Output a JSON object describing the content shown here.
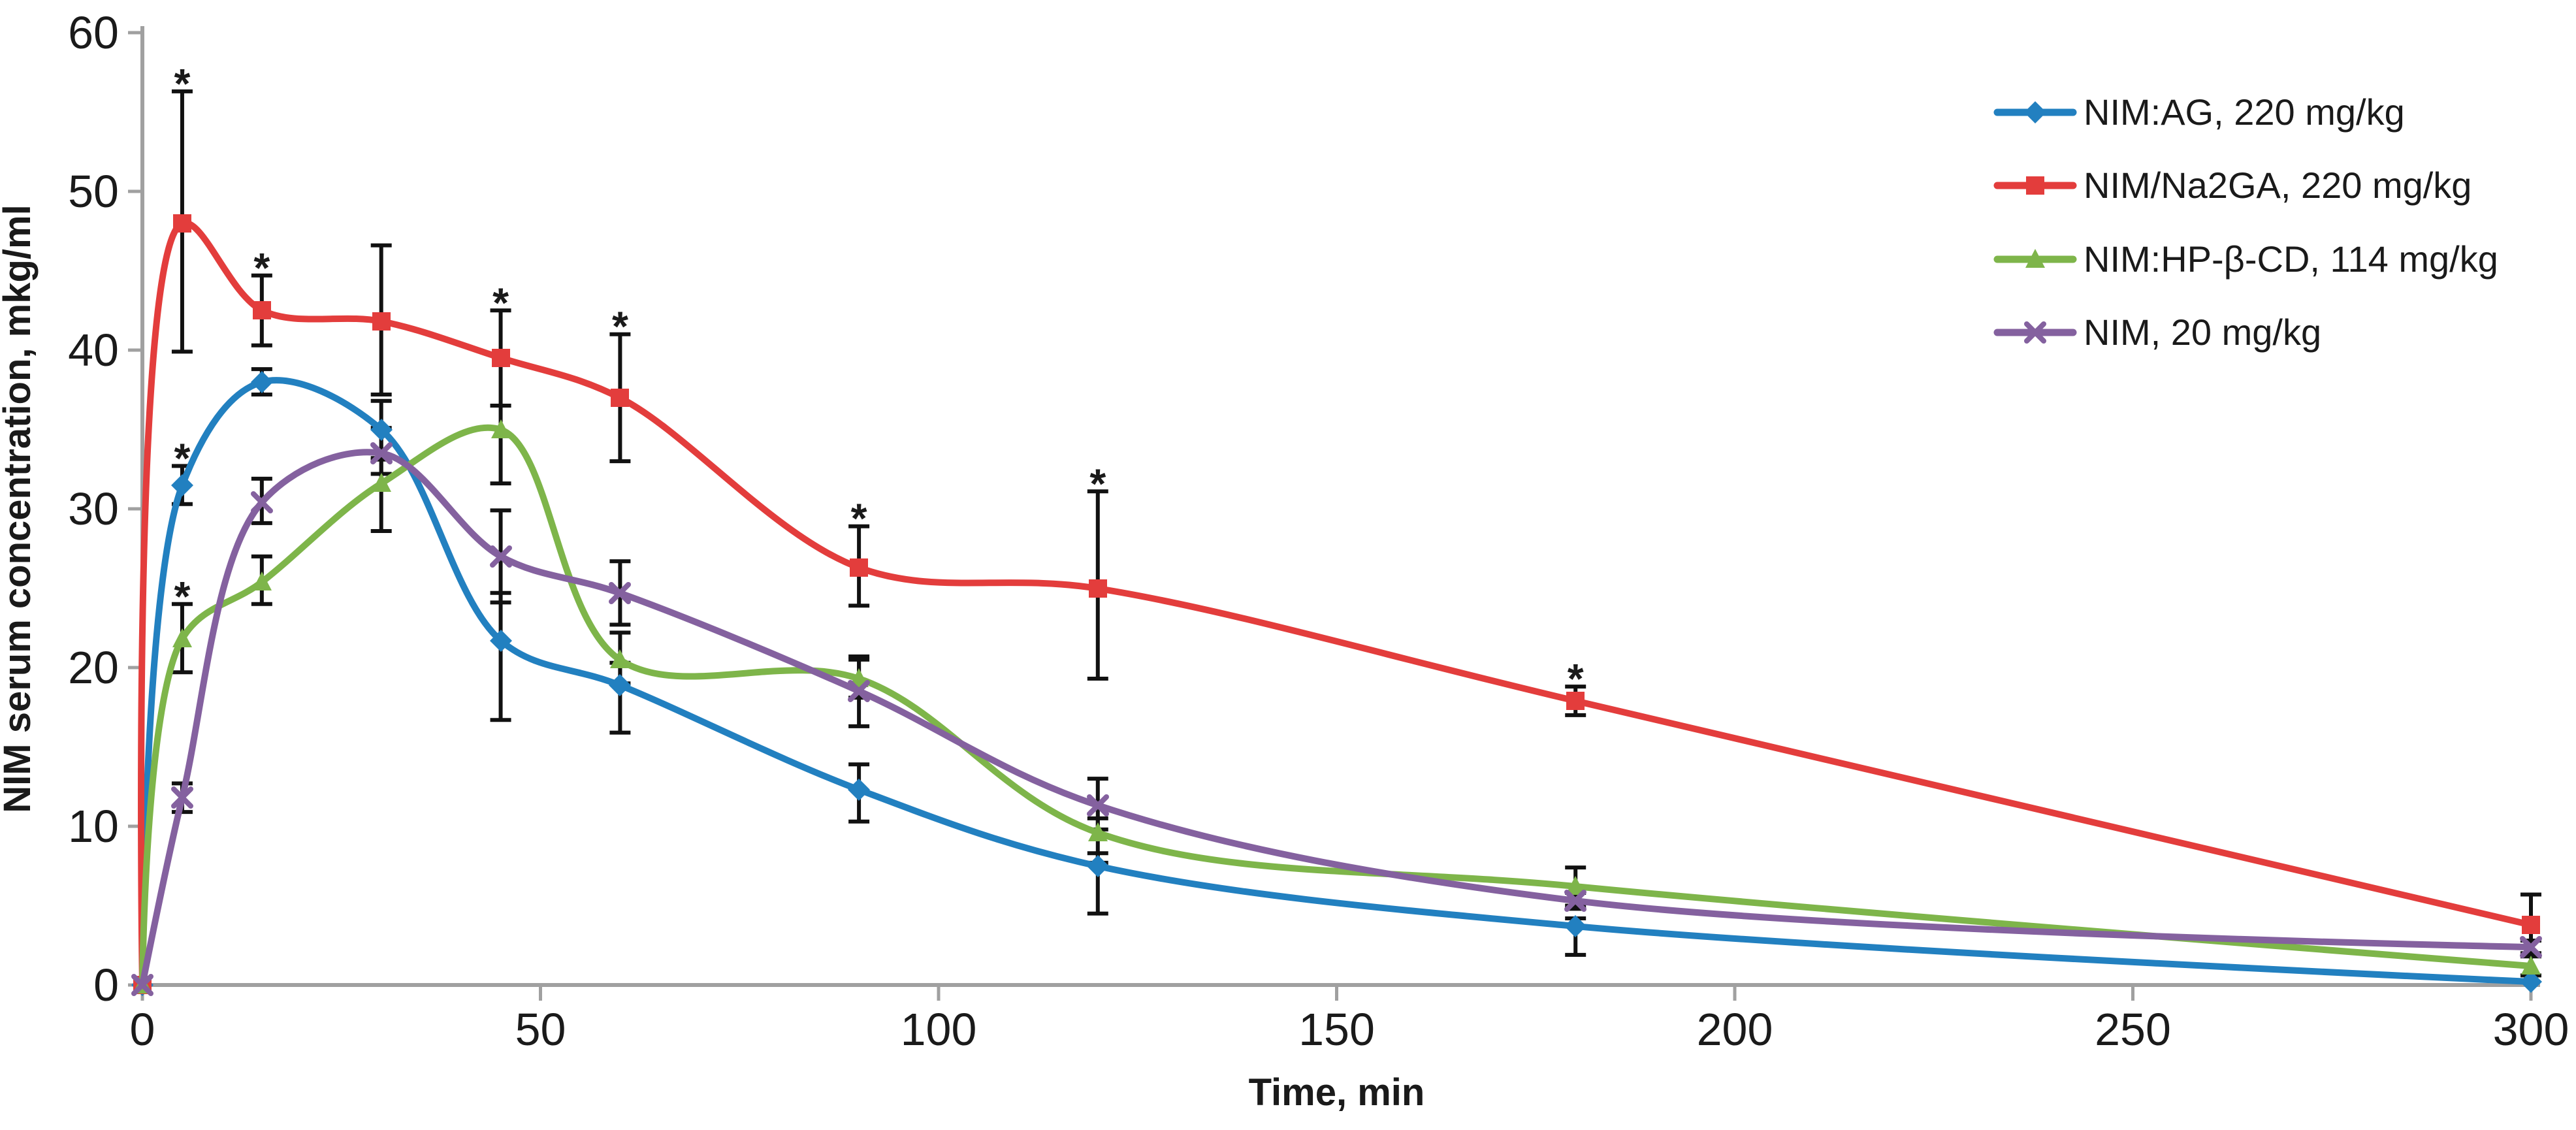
{
  "chart_data": {
    "type": "line",
    "title": "",
    "xlabel": "Time, min",
    "ylabel": "NIM serum concentration, mkg/ml",
    "xlim": [
      0,
      300
    ],
    "ylim": [
      0,
      60
    ],
    "xticks": [
      0,
      50,
      100,
      150,
      200,
      250,
      300
    ],
    "yticks": [
      0,
      10,
      20,
      30,
      40,
      50,
      60
    ],
    "grid": false,
    "legend_position": "right-top",
    "significance_marker": "*",
    "axis_color": "#a0a0a0",
    "error_bar_color": "#111111",
    "x": [
      0,
      5,
      15,
      30,
      45,
      60,
      90,
      120,
      180,
      300
    ],
    "series": [
      {
        "name": "NIM:AG, 220 mg/kg",
        "color": "#2280c0",
        "marker": "diamond",
        "values": [
          0,
          31.5,
          38.0,
          35.0,
          21.7,
          18.9,
          12.3,
          7.5,
          3.7,
          0.2
        ],
        "err_up": [
          0,
          1.2,
          0.8,
          1.8,
          3.0,
          1.4,
          1.6,
          0.8,
          0.5,
          0
        ],
        "err_down": [
          0,
          1.2,
          0.8,
          1.8,
          5.0,
          3.0,
          2.0,
          3.0,
          1.8,
          0
        ],
        "sig": [
          false,
          true,
          false,
          false,
          false,
          false,
          false,
          false,
          false,
          false
        ]
      },
      {
        "name": "NIM/Na2GA, 220 mg/kg",
        "color": "#e33d3c",
        "marker": "square",
        "values": [
          0,
          48.0,
          42.5,
          41.8,
          39.5,
          37.0,
          26.3,
          25.0,
          17.9,
          3.8
        ],
        "err_up": [
          0,
          8.3,
          2.2,
          4.8,
          3.0,
          4.0,
          2.6,
          6.1,
          0.9,
          1.9
        ],
        "err_down": [
          0,
          8.1,
          2.2,
          4.6,
          3.0,
          4.0,
          2.4,
          5.7,
          0.9,
          1.8
        ],
        "sig": [
          false,
          true,
          true,
          false,
          true,
          true,
          true,
          true,
          true,
          false
        ]
      },
      {
        "name": "NIM:HP-β-CD, 114 mg/kg",
        "color": "#7eb54a",
        "marker": "triangle",
        "values": [
          0,
          21.8,
          25.4,
          31.6,
          35.0,
          20.5,
          19.3,
          9.6,
          6.2,
          1.2
        ],
        "err_up": [
          0,
          2.2,
          1.6,
          1.5,
          1.5,
          1.7,
          1.4,
          0.9,
          1.2,
          0.6
        ],
        "err_down": [
          0,
          2.1,
          1.4,
          3.0,
          3.4,
          1.5,
          1.2,
          1.9,
          1.2,
          0.6
        ],
        "sig": [
          false,
          true,
          false,
          false,
          false,
          false,
          false,
          false,
          false,
          false
        ]
      },
      {
        "name": "NIM, 20 mg/kg",
        "color": "#84619f",
        "marker": "x",
        "values": [
          0,
          11.8,
          30.4,
          33.5,
          27.0,
          24.7,
          18.5,
          11.3,
          5.3,
          2.4
        ],
        "err_up": [
          0,
          0.9,
          1.5,
          1.6,
          2.9,
          2.0,
          2.0,
          1.7,
          0.5,
          0.4
        ],
        "err_down": [
          0,
          0.9,
          1.3,
          1.3,
          2.9,
          2.0,
          2.2,
          1.5,
          0.5,
          0.4
        ],
        "sig": [
          false,
          false,
          false,
          false,
          false,
          false,
          false,
          false,
          false,
          false
        ]
      }
    ]
  }
}
